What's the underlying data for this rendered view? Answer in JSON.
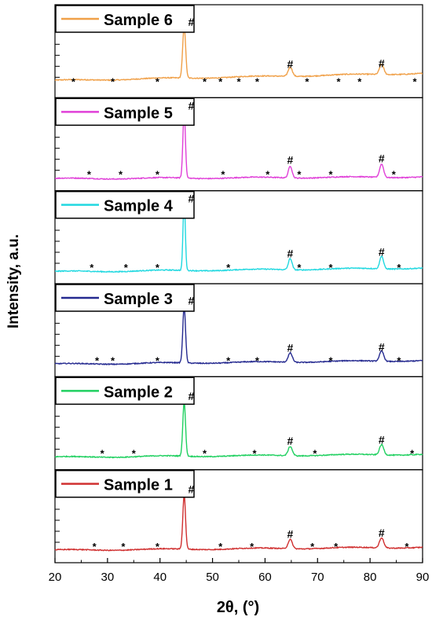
{
  "chart_data": {
    "type": "line",
    "layout": "stacked-panels",
    "xlabel": "2θ, (°)",
    "ylabel": "Intensity, a.u.",
    "xlim": [
      20,
      90
    ],
    "xticks": [
      20,
      30,
      40,
      50,
      60,
      70,
      80,
      90
    ],
    "y_ticks_labeled": false,
    "grid": false,
    "legend_position": "top-left",
    "peak_markers": {
      "main": "#",
      "minor": "*"
    },
    "series": [
      {
        "name": "Sample 6",
        "color": "#f0a048",
        "baseline": 0.15,
        "slope": 0.002,
        "peaks": [
          [
            44.6,
            1.0,
            0.28
          ],
          [
            64.8,
            0.18,
            0.4
          ],
          [
            82.2,
            0.2,
            0.4
          ]
        ],
        "hash_x": [
          44.6,
          64.8,
          82.2
        ],
        "star_x": [
          23.5,
          31,
          39.5,
          48.5,
          51.5,
          55,
          58.5,
          68,
          74,
          78,
          88.5
        ]
      },
      {
        "name": "Sample 5",
        "color": "#e040d8",
        "baseline": 0.05,
        "slope": 0.0005,
        "peaks": [
          [
            44.6,
            1.3,
            0.24
          ],
          [
            64.8,
            0.23,
            0.35
          ],
          [
            82.2,
            0.26,
            0.38
          ]
        ],
        "hash_x": [
          44.6,
          64.8,
          82.2
        ],
        "star_x": [
          26.5,
          32.5,
          39.5,
          52,
          60.5,
          66.5,
          72.5,
          84.5
        ]
      },
      {
        "name": "Sample 4",
        "color": "#20d8e0",
        "baseline": 0.05,
        "slope": 0.001,
        "peaks": [
          [
            44.6,
            1.35,
            0.22
          ],
          [
            64.8,
            0.22,
            0.35
          ],
          [
            82.2,
            0.25,
            0.35
          ]
        ],
        "hash_x": [
          44.6,
          64.8,
          82.2
        ],
        "star_x": [
          27,
          33.5,
          39.5,
          53,
          66.5,
          72.5,
          85.5
        ]
      },
      {
        "name": "Sample 3",
        "color": "#252a90",
        "baseline": 0.06,
        "slope": 0.001,
        "peaks": [
          [
            44.6,
            1.1,
            0.26
          ],
          [
            64.8,
            0.18,
            0.4
          ],
          [
            82.2,
            0.2,
            0.4
          ]
        ],
        "hash_x": [
          44.6,
          64.8,
          82.2
        ],
        "star_x": [
          28,
          31,
          39.5,
          53,
          58.5,
          72.5,
          85.5
        ]
      },
      {
        "name": "Sample 2",
        "color": "#20d060",
        "baseline": 0.06,
        "slope": 0.0008,
        "peaks": [
          [
            44.6,
            1.05,
            0.26
          ],
          [
            64.8,
            0.18,
            0.4
          ],
          [
            82.2,
            0.2,
            0.4
          ]
        ],
        "hash_x": [
          44.6,
          64.8,
          82.2
        ],
        "star_x": [
          29,
          35,
          48.5,
          58,
          69.5,
          88
        ]
      },
      {
        "name": "Sample 1",
        "color": "#d03030",
        "baseline": 0.06,
        "slope": 0.0008,
        "peaks": [
          [
            44.6,
            1.05,
            0.26
          ],
          [
            64.8,
            0.18,
            0.4
          ],
          [
            82.2,
            0.2,
            0.4
          ]
        ],
        "hash_x": [
          44.6,
          64.8,
          82.2
        ],
        "star_x": [
          27.5,
          33,
          39.5,
          51.5,
          57.5,
          69,
          73.5,
          87
        ]
      }
    ]
  }
}
